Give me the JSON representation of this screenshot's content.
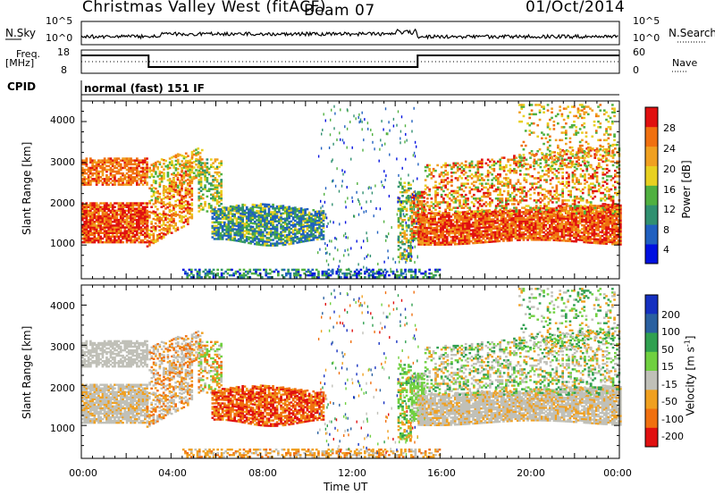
{
  "header": {
    "station": "Christmas Valley West (fitACF)",
    "beam": "Beam 07",
    "date": "01/Oct/2014"
  },
  "control": {
    "nsky_label": "N.Sky",
    "nsearch_label": "N.Search",
    "freq_label_line1": "Freq.",
    "freq_label_line2": "[MHz]",
    "nave_label": "Nave",
    "cpid_label": "CPID",
    "cpid_text": "normal (fast) 151 IF",
    "noise_left_ticks": [
      "10^5",
      "10^0"
    ],
    "noise_right_ticks": [
      "10^5",
      "10^0"
    ],
    "freq_left_ticks": [
      "18",
      "8"
    ],
    "nave_right_ticks": [
      "60",
      "0"
    ]
  },
  "chart_data": [
    {
      "type": "heatmap",
      "panel": "power",
      "ylabel": "Slant Range [km]",
      "xlabel": "",
      "ylim": [
        180,
        4500
      ],
      "yticks": [
        1000,
        2000,
        3000,
        4000
      ],
      "xticks": [
        "00:00",
        "04:00",
        "08:00",
        "12:00",
        "16:00",
        "20:00",
        "00:00"
      ],
      "colorbar": {
        "label": "Power [dB]",
        "ticks": [
          "4",
          "8",
          "12",
          "16",
          "20",
          "24",
          "28"
        ],
        "colors": [
          "#0010e0",
          "#2060c0",
          "#309070",
          "#50b040",
          "#e8d020",
          "#f0a020",
          "#f07010",
          "#e01010"
        ]
      }
    },
    {
      "type": "heatmap",
      "panel": "velocity",
      "ylabel": "Slant Range [km]",
      "xlabel": "Time UT",
      "ylim": [
        180,
        4500
      ],
      "yticks": [
        1000,
        2000,
        3000,
        4000
      ],
      "xticks": [
        "00:00",
        "04:00",
        "08:00",
        "12:00",
        "16:00",
        "20:00",
        "00:00"
      ],
      "colorbar": {
        "label": "Velocity [m s",
        "label_sup": "-1",
        "label_end": "]",
        "ticks": [
          "200",
          "100",
          "50",
          "15",
          "-15",
          "-50",
          "-100",
          "-200"
        ],
        "colors": [
          "#1530c0",
          "#2a60a0",
          "#30a050",
          "#70d040",
          "#c0c0b8",
          "#f0a020",
          "#f07010",
          "#e01010"
        ]
      }
    }
  ]
}
